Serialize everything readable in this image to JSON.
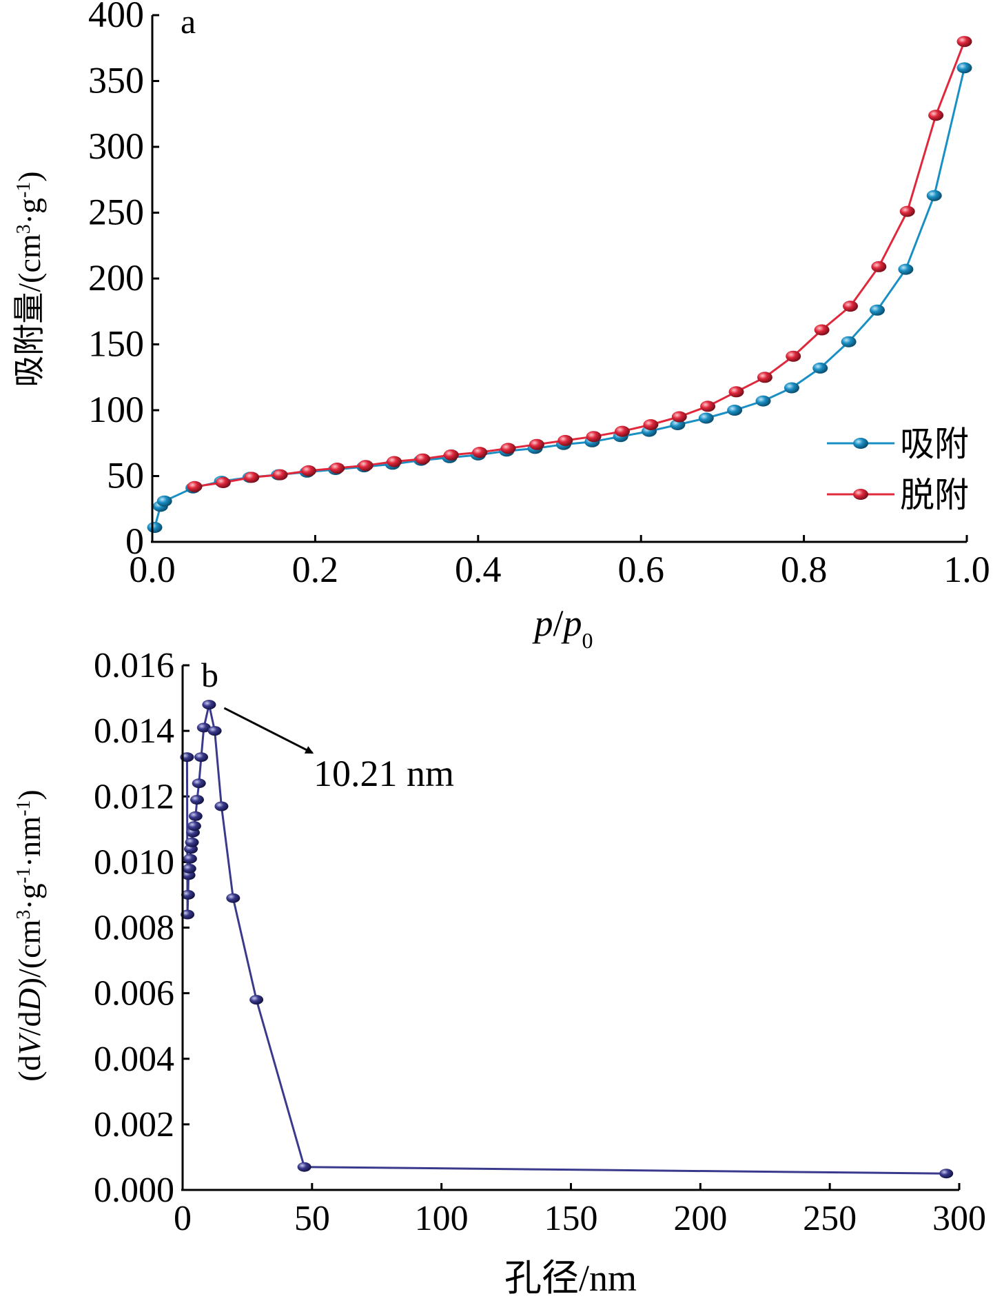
{
  "chart_data": [
    {
      "type": "line",
      "panel_label": "a",
      "xlabel": {
        "p1": "p",
        "slash": "/",
        "p2": "p",
        "sub": "0"
      },
      "ylabel": {
        "main": "吸附量/(cm",
        "sup1": "3",
        "mid": "·g",
        "sup2": "-1",
        "end": ")"
      },
      "xlim": [
        0,
        1.0
      ],
      "ylim": [
        0,
        400
      ],
      "xticks": [
        0,
        0.2,
        0.4,
        0.6,
        0.8,
        1.0
      ],
      "xtick_labels": [
        "0.0",
        "0.2",
        "0.4",
        "0.6",
        "0.8",
        "1.0"
      ],
      "yticks": [
        0,
        50,
        100,
        150,
        200,
        250,
        300,
        350,
        400
      ],
      "ytick_labels": [
        "0",
        "50",
        "100",
        "150",
        "200",
        "250",
        "300",
        "350",
        "400"
      ],
      "legend_position": "bottom-right",
      "series": [
        {
          "name": "吸附",
          "color": "#1a8fc4",
          "x": [
            0.003,
            0.01,
            0.015,
            0.05,
            0.085,
            0.12,
            0.155,
            0.19,
            0.225,
            0.26,
            0.295,
            0.33,
            0.365,
            0.4,
            0.435,
            0.47,
            0.505,
            0.54,
            0.575,
            0.61,
            0.645,
            0.68,
            0.715,
            0.75,
            0.785,
            0.82,
            0.855,
            0.89,
            0.925,
            0.96,
            0.997
          ],
          "y": [
            11,
            27,
            31,
            41,
            46,
            49,
            51,
            53,
            55,
            57,
            59,
            62,
            64,
            66,
            69,
            71,
            74,
            76,
            80,
            84,
            89,
            94,
            100,
            107,
            117,
            132,
            152,
            176,
            207,
            263,
            360
          ]
        },
        {
          "name": "脱附",
          "color": "#e0283c",
          "x": [
            0.052,
            0.087,
            0.122,
            0.157,
            0.192,
            0.227,
            0.262,
            0.297,
            0.332,
            0.367,
            0.402,
            0.437,
            0.472,
            0.507,
            0.542,
            0.577,
            0.612,
            0.647,
            0.682,
            0.717,
            0.752,
            0.787,
            0.822,
            0.857,
            0.892,
            0.927,
            0.962,
            0.997
          ],
          "y": [
            42,
            45,
            49,
            51,
            54,
            56,
            58,
            61,
            63,
            66,
            68,
            71,
            74,
            77,
            80,
            84,
            89,
            95,
            103,
            114,
            125,
            141,
            161,
            179,
            209,
            251,
            324,
            380
          ]
        }
      ]
    },
    {
      "type": "line",
      "panel_label": "b",
      "xlabel": "孔径/nm",
      "ylabel": {
        "a": "(d",
        "V": "V",
        "b": "/d",
        "D": "D",
        "c": ")/(cm",
        "sup1": "3",
        "d": "·g",
        "sup2": "-1",
        "e": "·nm",
        "sup3": "-1",
        "f": ")"
      },
      "xlim": [
        0,
        300
      ],
      "ylim": [
        0,
        0.016
      ],
      "xticks": [
        0,
        50,
        100,
        150,
        200,
        250,
        300
      ],
      "xtick_labels": [
        "0",
        "50",
        "100",
        "150",
        "200",
        "250",
        "300"
      ],
      "yticks": [
        0,
        0.002,
        0.004,
        0.006,
        0.008,
        0.01,
        0.012,
        0.014,
        0.016
      ],
      "ytick_labels": [
        "0.000",
        "0.002",
        "0.004",
        "0.006",
        "0.008",
        "0.010",
        "0.012",
        "0.014",
        "0.016"
      ],
      "annotation": {
        "text": "10.21 nm",
        "x": 10.21,
        "y": 0.0148
      },
      "series": [
        {
          "color": "#3a3a8c",
          "x": [
            1.7,
            1.9,
            2.1,
            2.3,
            2.6,
            2.9,
            3.2,
            3.6,
            4.0,
            4.5,
            5.0,
            5.6,
            6.3,
            7.2,
            8.2,
            10.21,
            12.4,
            15.0,
            19.5,
            28.5,
            47.0,
            295.0
          ],
          "y": [
            0.0132,
            0.0084,
            0.009,
            0.0096,
            0.0098,
            0.0101,
            0.0104,
            0.0106,
            0.0109,
            0.0111,
            0.0114,
            0.0119,
            0.0124,
            0.0132,
            0.0141,
            0.0148,
            0.014,
            0.0117,
            0.0089,
            0.0058,
            0.0007,
            0.0005
          ]
        }
      ]
    }
  ]
}
